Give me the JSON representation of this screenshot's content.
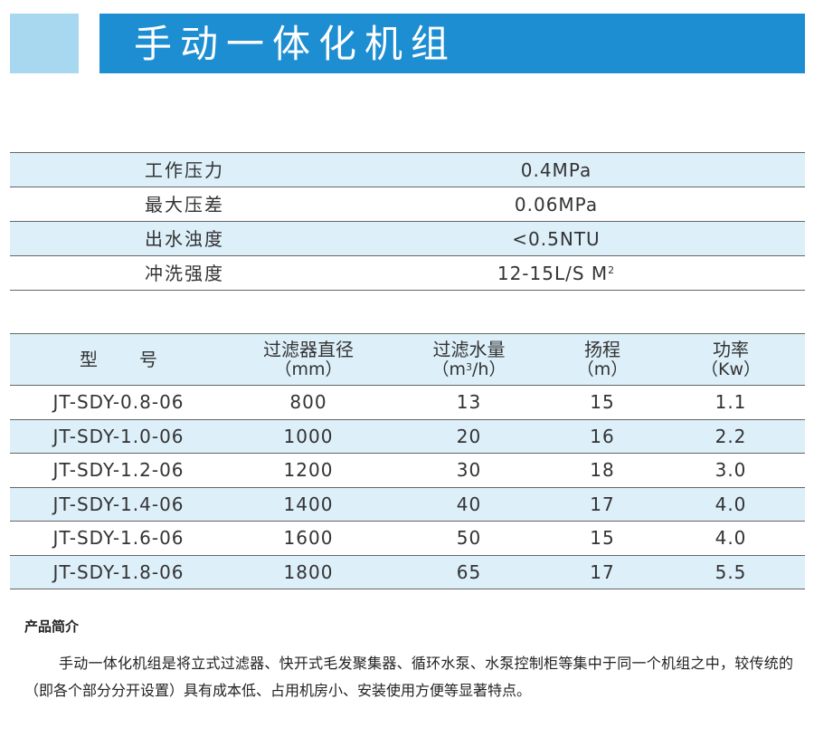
{
  "header": {
    "title": "手动一体化机组"
  },
  "specs": [
    {
      "label": "工作压力",
      "value": "0.4MPa"
    },
    {
      "label": "最大压差",
      "value": "0.06MPa"
    },
    {
      "label": "出水浊度",
      "value": "<0.5NTU"
    },
    {
      "label": "冲洗强度",
      "value": "12-15L/S M",
      "value_sup": "2"
    }
  ],
  "model_table": {
    "headers": {
      "model_a": "型",
      "model_b": "号",
      "diameter": "过滤器直径",
      "diameter_unit": "（mm）",
      "flow": "过滤水量",
      "flow_unit_pre": "（m",
      "flow_unit_sup": "3",
      "flow_unit_post": "/h）",
      "head": "扬程",
      "head_unit": "（m）",
      "power": "功率",
      "power_unit": "（Kw）"
    },
    "rows": [
      {
        "model": "JT-SDY-0.8-06",
        "diameter": "800",
        "flow": "13",
        "head": "15",
        "power": "1.1"
      },
      {
        "model": "JT-SDY-1.0-06",
        "diameter": "1000",
        "flow": "20",
        "head": "16",
        "power": "2.2"
      },
      {
        "model": "JT-SDY-1.2-06",
        "diameter": "1200",
        "flow": "30",
        "head": "18",
        "power": "3.0"
      },
      {
        "model": "JT-SDY-1.4-06",
        "diameter": "1400",
        "flow": "40",
        "head": "17",
        "power": "4.0"
      },
      {
        "model": "JT-SDY-1.6-06",
        "diameter": "1600",
        "flow": "50",
        "head": "15",
        "power": "4.0"
      },
      {
        "model": "JT-SDY-1.8-06",
        "diameter": "1800",
        "flow": "65",
        "head": "17",
        "power": "5.5"
      }
    ]
  },
  "intro": {
    "heading": "产品简介",
    "body": "手动一体化机组是将立式过滤器、快开式毛发聚集器、循环水泵、水泵控制柜等集中于同一个机组之中，较传统的（即各个部分分开设置）具有成本低、占用机房小、安装使用方便等显著特点。"
  },
  "colors": {
    "title_bar": "#1e8ed2",
    "accent_block": "#a8d8f0",
    "row_stripe": "#ddeff9",
    "rule": "#666666"
  }
}
